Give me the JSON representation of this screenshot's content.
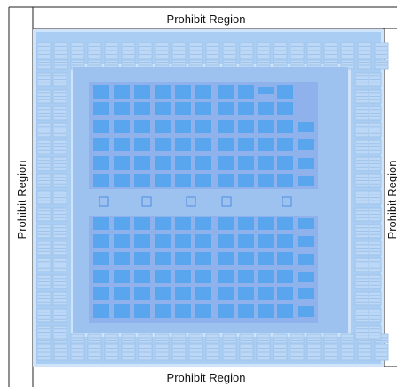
{
  "regions": {
    "top_label": "Prohibit Region",
    "bottom_label": "Prohibit Region",
    "left_label": "Prohibit Region",
    "right_label": "Prohibit Region"
  },
  "colors": {
    "frame": "#222222",
    "die_fill": "#cfe3fb",
    "io_band": "#a9cdf3",
    "core_fill": "#9ec2f0",
    "block_area": "#8fb2ec",
    "block": "#5aa6ee",
    "block_dark": "#4f8fe0",
    "io_cell": "#bcd8f6",
    "io_cell_line": "#9fc3ea"
  },
  "icons": {
    "io_cell": "io-cell-icon",
    "logic_block": "logic-block-icon"
  }
}
